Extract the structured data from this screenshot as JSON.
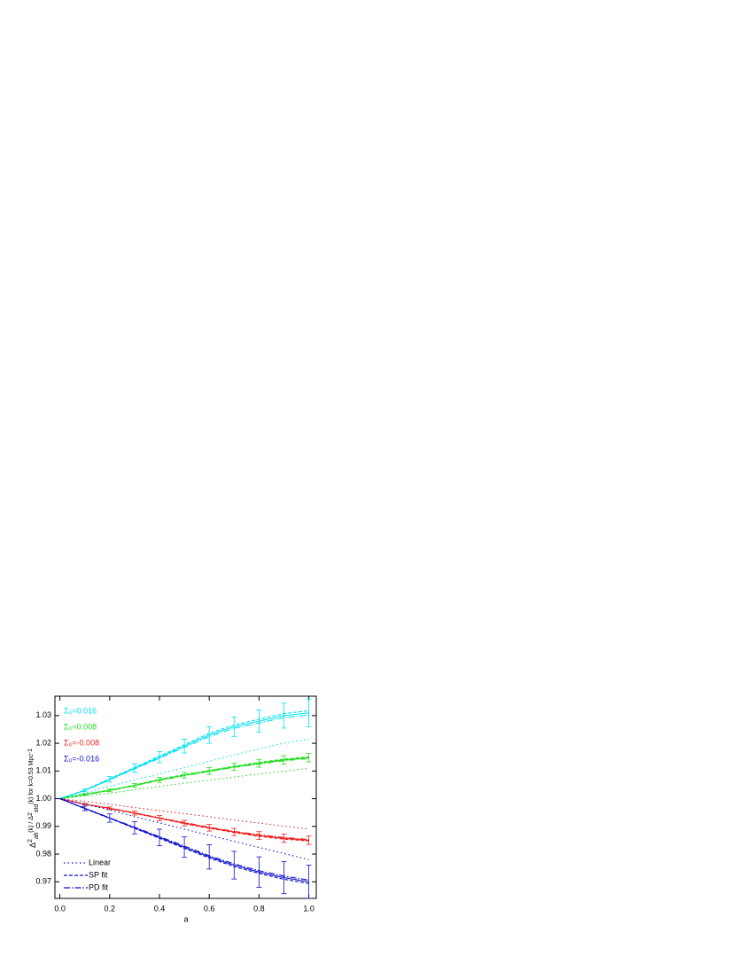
{
  "chart_data": {
    "type": "line",
    "x_label": "a",
    "y_label_parts": [
      "Δ",
      "2",
      "alt",
      "(k) / Δ",
      "2",
      "std",
      "(k) for k=0.53 Mpc",
      "-1"
    ],
    "x": [
      0,
      0.1,
      0.2,
      0.3,
      0.4,
      0.5,
      0.6,
      0.7,
      0.8,
      0.9,
      1.0
    ],
    "xlim": [
      -0.02,
      1.03
    ],
    "ylim": [
      0.964,
      1.037
    ],
    "xticks": [
      {
        "value": 0,
        "label": "0.0"
      },
      0.2,
      0.4,
      0.6,
      0.8,
      {
        "value": 1,
        "label": "1.0"
      }
    ],
    "yticks": [
      0.97,
      0.98,
      0.99,
      {
        "value": 1,
        "label": "1.00"
      },
      1.01,
      1.02,
      1.03
    ],
    "series": [
      {
        "name": "Σ₀=0.016",
        "color": "#00e0ee",
        "values": [
          1.0,
          1.003,
          1.007,
          1.011,
          1.015,
          1.019,
          1.023,
          1.026,
          1.028,
          1.03,
          1.031
        ],
        "errors": [
          0,
          0.0005,
          0.001,
          0.0015,
          0.002,
          0.0025,
          0.003,
          0.0035,
          0.004,
          0.0045,
          0.005
        ],
        "linear": [
          1.0,
          1.002,
          1.0045,
          1.0068,
          1.009,
          1.0112,
          1.0135,
          1.0158,
          1.018,
          1.02,
          1.0215
        ],
        "sp_fit": [
          1.0,
          1.0031,
          1.0072,
          1.0113,
          1.0154,
          1.0195,
          1.0236,
          1.0266,
          1.0287,
          1.0307,
          1.0318
        ],
        "pd_fit": [
          1.0,
          1.0029,
          1.0068,
          1.0107,
          1.0146,
          1.0185,
          1.0224,
          1.0254,
          1.0273,
          1.0293,
          1.0302
        ]
      },
      {
        "name": "Σ₀=0.008",
        "color": "#22dd22",
        "values": [
          1.0,
          1.0015,
          1.003,
          1.0048,
          1.0068,
          1.0085,
          1.01,
          1.0115,
          1.0128,
          1.014,
          1.0148
        ],
        "errors": [
          0,
          0.0003,
          0.0005,
          0.0007,
          0.0009,
          0.001,
          0.0012,
          0.0013,
          0.0014,
          0.0015,
          0.0015
        ],
        "linear": [
          1.0,
          1.001,
          1.002,
          1.0032,
          1.0044,
          1.0056,
          1.0067,
          1.0078,
          1.0089,
          1.0099,
          1.011
        ],
        "sp_fit": [
          1.0,
          1.0016,
          1.0031,
          1.0049,
          1.007,
          1.0087,
          1.0102,
          1.0117,
          1.0131,
          1.0143,
          1.0151
        ],
        "pd_fit": [
          1.0,
          1.0014,
          1.0029,
          1.0047,
          1.0066,
          1.0083,
          1.0098,
          1.0113,
          1.0125,
          1.0137,
          1.0145
        ]
      },
      {
        "name": "Σ₀=-0.008",
        "color": "#ee2222",
        "values": [
          1.0,
          0.998,
          0.9965,
          0.9948,
          0.993,
          0.9912,
          0.9895,
          0.988,
          0.9867,
          0.9857,
          0.985
        ],
        "errors": [
          0,
          0.0003,
          0.0005,
          0.0007,
          0.0009,
          0.001,
          0.0012,
          0.0013,
          0.0014,
          0.0015,
          0.0015
        ],
        "linear": [
          1.0,
          0.999,
          0.998,
          0.9968,
          0.9957,
          0.9946,
          0.9935,
          0.9923,
          0.9912,
          0.9901,
          0.989
        ],
        "sp_fit": [
          1.0,
          0.998,
          0.9964,
          0.9947,
          0.9929,
          0.991,
          0.9893,
          0.9878,
          0.9864,
          0.9854,
          0.9847
        ],
        "pd_fit": [
          1.0,
          0.998,
          0.9966,
          0.9949,
          0.9931,
          0.9914,
          0.9897,
          0.9882,
          0.987,
          0.986,
          0.9853
        ]
      },
      {
        "name": "Σ₀=-0.016",
        "color": "#1111cc",
        "values": [
          1.0,
          0.9965,
          0.993,
          0.9895,
          0.986,
          0.9825,
          0.979,
          0.976,
          0.9735,
          0.9715,
          0.97
        ],
        "errors": [
          0,
          0.0008,
          0.0015,
          0.0022,
          0.003,
          0.0037,
          0.0044,
          0.005,
          0.0055,
          0.0058,
          0.006
        ],
        "linear": [
          1.0,
          0.998,
          0.996,
          0.9935,
          0.9913,
          0.989,
          0.9868,
          0.9846,
          0.9824,
          0.9802,
          0.978
        ],
        "sp_fit": [
          1.0,
          0.9964,
          0.9929,
          0.9893,
          0.9857,
          0.9821,
          0.9786,
          0.9755,
          0.973,
          0.9709,
          0.9694
        ],
        "pd_fit": [
          1.0,
          0.9966,
          0.9931,
          0.9897,
          0.9863,
          0.9829,
          0.9794,
          0.9765,
          0.974,
          0.9721,
          0.9706
        ]
      }
    ],
    "line_styles": [
      {
        "name": "Linear",
        "key": "linear",
        "style": "dotted"
      },
      {
        "name": "SP fit",
        "key": "sp_fit",
        "style": "dashed"
      },
      {
        "name": "PD fit",
        "key": "pd_fit",
        "style": "dashdot"
      }
    ],
    "line_style_legend_color": "#1111cc"
  }
}
